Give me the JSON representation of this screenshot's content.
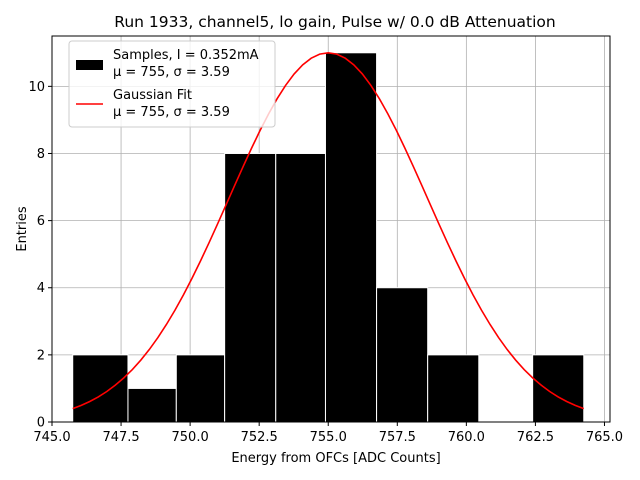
{
  "chart_data": {
    "type": "bar",
    "title": "Run 1933, channel5, lo gain, Pulse w/ 0.0 dB Attenuation",
    "xlabel": "Energy from OFCs [ADC Counts]",
    "ylabel": "Entries",
    "xlim": [
      745.0,
      765.2
    ],
    "ylim": [
      0,
      11.5
    ],
    "grid": true,
    "legend_position": "top-left",
    "xticks": [
      745.0,
      747.5,
      750.0,
      752.5,
      755.0,
      757.5,
      760.0,
      762.5,
      765.0
    ],
    "xtick_labels": [
      "745.0",
      "747.5",
      "750.0",
      "752.5",
      "755.0",
      "757.5",
      "760.0",
      "762.5",
      "765.0"
    ],
    "yticks": [
      0,
      2,
      4,
      6,
      8,
      10
    ],
    "ytick_labels": [
      "0",
      "2",
      "4",
      "6",
      "8",
      "10"
    ],
    "bins": [
      {
        "left": 745.75,
        "right": 747.75,
        "count": 2
      },
      {
        "left": 747.75,
        "right": 749.5,
        "count": 1
      },
      {
        "left": 749.5,
        "right": 751.25,
        "count": 2
      },
      {
        "left": 751.25,
        "right": 753.1,
        "count": 8
      },
      {
        "left": 753.1,
        "right": 754.9,
        "count": 8
      },
      {
        "left": 754.9,
        "right": 756.75,
        "count": 11
      },
      {
        "left": 756.75,
        "right": 758.6,
        "count": 4
      },
      {
        "left": 758.6,
        "right": 760.45,
        "count": 2
      },
      {
        "left": 760.45,
        "right": 762.4,
        "count": 0
      },
      {
        "left": 762.4,
        "right": 764.25,
        "count": 2
      }
    ],
    "fit": {
      "mu": 755.0,
      "sigma": 3.59,
      "amplitude": 11.0,
      "x_start": 745.75,
      "x_end": 764.25
    },
    "series": [
      {
        "name": "Samples, I = 0.352mA",
        "subtitle": "μ = 755, σ = 3.59",
        "color": "#000000",
        "kind": "histogram"
      },
      {
        "name": "Gaussian Fit",
        "subtitle": "μ = 755, σ = 3.59",
        "color": "#ff0000",
        "kind": "line"
      }
    ],
    "colors": {
      "bar": "#000000",
      "bar_edge": "#ffffff",
      "fit": "#ff0000",
      "grid": "#b0b0b0"
    }
  }
}
